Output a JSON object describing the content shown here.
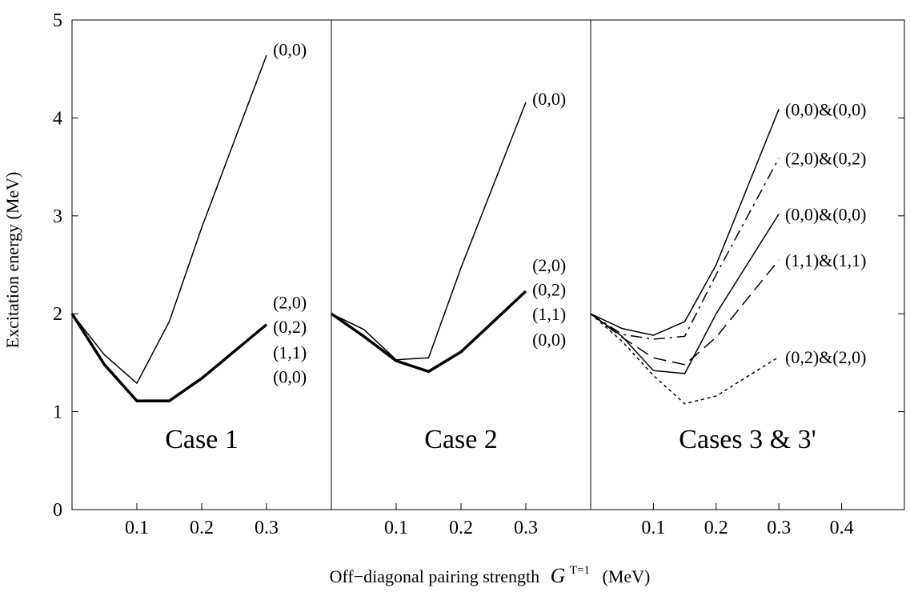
{
  "chart_data": {
    "type": "line",
    "ylabel": "Excitation energy (MeV)",
    "xlabel_prefix": "Off−diagonal pairing strength",
    "xlabel_sym": "G",
    "xlabel_sup": "T=1",
    "xlabel_suffix": "(MeV)",
    "ylim": [
      0,
      5
    ],
    "yticks": [
      "0",
      "1",
      "2",
      "3",
      "4",
      "5"
    ],
    "panels": [
      {
        "title": "Case 1",
        "xlim": [
          0,
          0.4
        ],
        "xticks": [
          "0.1",
          "0.2",
          "0.3"
        ],
        "series": [
          {
            "name": "(0,0)",
            "style": "solid",
            "width": 1.5,
            "x": [
              0,
              0.05,
              0.1,
              0.15,
              0.2,
              0.3
            ],
            "y": [
              2.0,
              1.58,
              1.29,
              1.92,
              2.88,
              4.64
            ]
          },
          {
            "name": "(2,0) (0,2) (1,1) (0,0)",
            "style": "solid",
            "width": 3.5,
            "x": [
              0,
              0.05,
              0.1,
              0.15,
              0.2,
              0.3
            ],
            "y": [
              2.0,
              1.48,
              1.11,
              1.11,
              1.34,
              1.89
            ]
          }
        ],
        "labels": [
          {
            "text": "(0,0)",
            "x": 0.31,
            "y": 4.7
          },
          {
            "text": "(2,0)",
            "x": 0.31,
            "y": 2.12
          },
          {
            "text": "(0,2)",
            "x": 0.31,
            "y": 1.87
          },
          {
            "text": "(1,1)",
            "x": 0.31,
            "y": 1.61
          },
          {
            "text": "(0,0)",
            "x": 0.31,
            "y": 1.36
          }
        ]
      },
      {
        "title": "Case 2",
        "xlim": [
          0,
          0.4
        ],
        "xticks": [
          "0.1",
          "0.2",
          "0.3"
        ],
        "series": [
          {
            "name": "(0,0)",
            "style": "solid",
            "width": 1.5,
            "x": [
              0,
              0.05,
              0.1,
              0.15,
              0.2,
              0.3
            ],
            "y": [
              2.0,
              1.84,
              1.53,
              1.55,
              2.47,
              4.16
            ]
          },
          {
            "name": "(2,0) (0,2) (1,1) (0,0)",
            "style": "solid",
            "width": 3.5,
            "x": [
              0,
              0.05,
              0.1,
              0.15,
              0.2,
              0.3
            ],
            "y": [
              2.0,
              1.77,
              1.52,
              1.41,
              1.61,
              2.23
            ]
          }
        ],
        "labels": [
          {
            "text": "(0,0)",
            "x": 0.31,
            "y": 4.2
          },
          {
            "text": "(2,0)",
            "x": 0.31,
            "y": 2.5
          },
          {
            "text": "(0,2)",
            "x": 0.31,
            "y": 2.25
          },
          {
            "text": "(1,1)",
            "x": 0.31,
            "y": 2.0
          },
          {
            "text": "(0,0)",
            "x": 0.31,
            "y": 1.74
          }
        ]
      },
      {
        "title": "Cases 3 & 3'",
        "xlim": [
          0,
          0.5
        ],
        "xticks": [
          "0.1",
          "0.2",
          "0.3",
          "0.4"
        ],
        "series": [
          {
            "name": "(0,0)&(0,0)",
            "style": "solid",
            "width": 1.5,
            "x": [
              0,
              0.05,
              0.1,
              0.15,
              0.2,
              0.3
            ],
            "y": [
              2.0,
              1.85,
              1.78,
              1.92,
              2.5,
              4.09
            ]
          },
          {
            "name": "(2,0)&(0,2)",
            "style": "dashdot",
            "width": 1.5,
            "x": [
              0,
              0.05,
              0.1,
              0.15,
              0.2,
              0.3
            ],
            "y": [
              2.0,
              1.79,
              1.74,
              1.77,
              2.4,
              3.59
            ]
          },
          {
            "name": "(0,0)&(0,0)",
            "style": "solid",
            "width": 1.5,
            "x": [
              0,
              0.05,
              0.1,
              0.15,
              0.2,
              0.3
            ],
            "y": [
              2.0,
              1.77,
              1.42,
              1.39,
              2.0,
              3.02
            ]
          },
          {
            "name": "(1,1)&(1,1)",
            "style": "dashed",
            "width": 1.5,
            "x": [
              0,
              0.05,
              0.1,
              0.15,
              0.2,
              0.3
            ],
            "y": [
              2.0,
              1.76,
              1.55,
              1.48,
              1.76,
              2.55
            ]
          },
          {
            "name": "(0,2)&(2,0)",
            "style": "dotted",
            "width": 1.5,
            "x": [
              0,
              0.05,
              0.1,
              0.15,
              0.2,
              0.3
            ],
            "y": [
              2.0,
              1.72,
              1.37,
              1.08,
              1.16,
              1.56
            ]
          }
        ],
        "labels": [
          {
            "text": "(0,0)&(0,0)",
            "x": 0.31,
            "y": 4.09
          },
          {
            "text": "(2,0)&(0,2)",
            "x": 0.31,
            "y": 3.59
          },
          {
            "text": "(0,0)&(0,0)",
            "x": 0.31,
            "y": 3.02
          },
          {
            "text": "(1,1)&(1,1)",
            "x": 0.31,
            "y": 2.55
          },
          {
            "text": "(0,2)&(2,0)",
            "x": 0.31,
            "y": 1.56
          }
        ]
      }
    ]
  }
}
